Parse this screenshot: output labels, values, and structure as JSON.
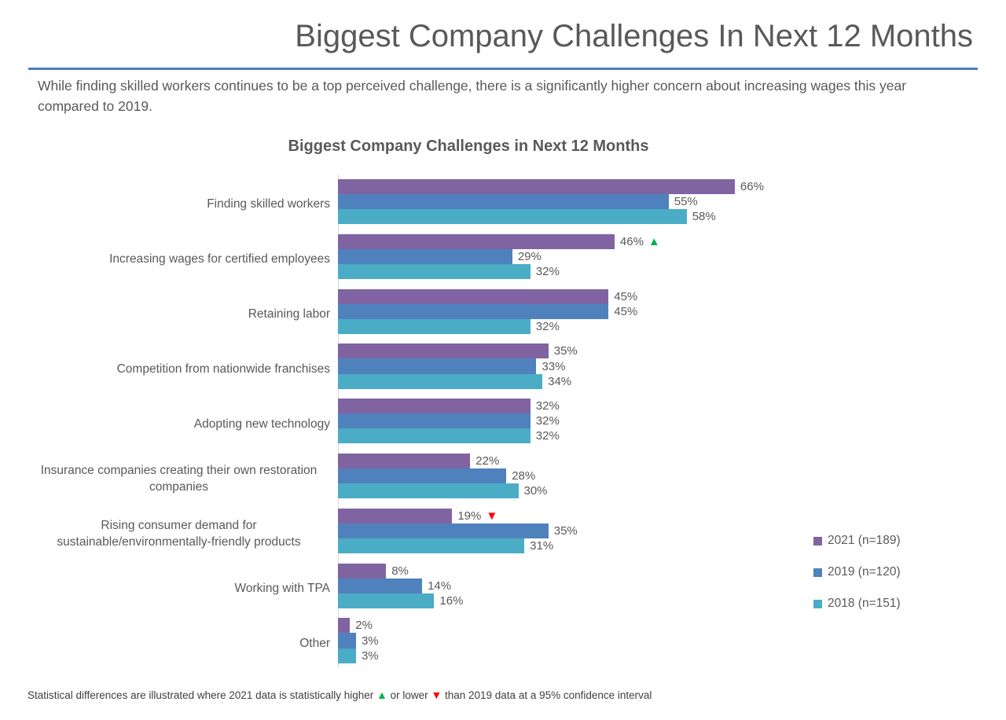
{
  "header": {
    "title": "Biggest Company Challenges In Next 12 Months",
    "subtitle": "While finding skilled workers continues to be a top perceived challenge, there is a significantly higher concern about increasing wages this year compared to 2019."
  },
  "chart_data": {
    "type": "bar",
    "orientation": "horizontal",
    "title": "Biggest Company Challenges in Next 12 Months",
    "categories": [
      "Finding skilled workers",
      "Increasing wages for certified employees",
      "Retaining labor",
      "Competition from nationwide franchises",
      "Adopting new technology",
      "Insurance companies creating their own restoration companies",
      "Rising consumer demand for sustainable/environmentally-friendly products",
      "Working with TPA",
      "Other"
    ],
    "series": [
      {
        "name": "2021 (n=189)",
        "color": "#8064A2",
        "values": [
          66,
          46,
          45,
          35,
          32,
          22,
          19,
          8,
          2
        ],
        "markers": [
          null,
          "up",
          null,
          null,
          null,
          null,
          "down",
          null,
          null
        ]
      },
      {
        "name": "2019 (n=120)",
        "color": "#4F81BD",
        "values": [
          55,
          29,
          45,
          33,
          32,
          28,
          35,
          14,
          3
        ],
        "markers": [
          null,
          null,
          null,
          null,
          null,
          null,
          null,
          null,
          null
        ]
      },
      {
        "name": "2018 (n=151)",
        "color": "#4BACC6",
        "values": [
          58,
          32,
          32,
          34,
          32,
          30,
          31,
          16,
          3
        ],
        "markers": [
          null,
          null,
          null,
          null,
          null,
          null,
          null,
          null,
          null
        ]
      }
    ],
    "value_suffix": "%",
    "xlim": [
      0,
      70
    ],
    "grid": false,
    "legend_position": "right",
    "marker_colors": {
      "up": "#00B050",
      "down": "#FF0000"
    },
    "marker_glyphs": {
      "up": "▲",
      "down": "▼"
    }
  },
  "footnote": {
    "part1": "Statistical differences are illustrated where 2021 data is statistically higher ",
    "part2": " or lower ",
    "part3": " than 2019 data at a 95% confidence interval"
  },
  "colors": {
    "accent_rule": "#4a7ebb",
    "text_gray": "#595959",
    "axis_line": "#d9d9d9",
    "significance_up": "#00B050",
    "significance_down": "#FF0000"
  }
}
